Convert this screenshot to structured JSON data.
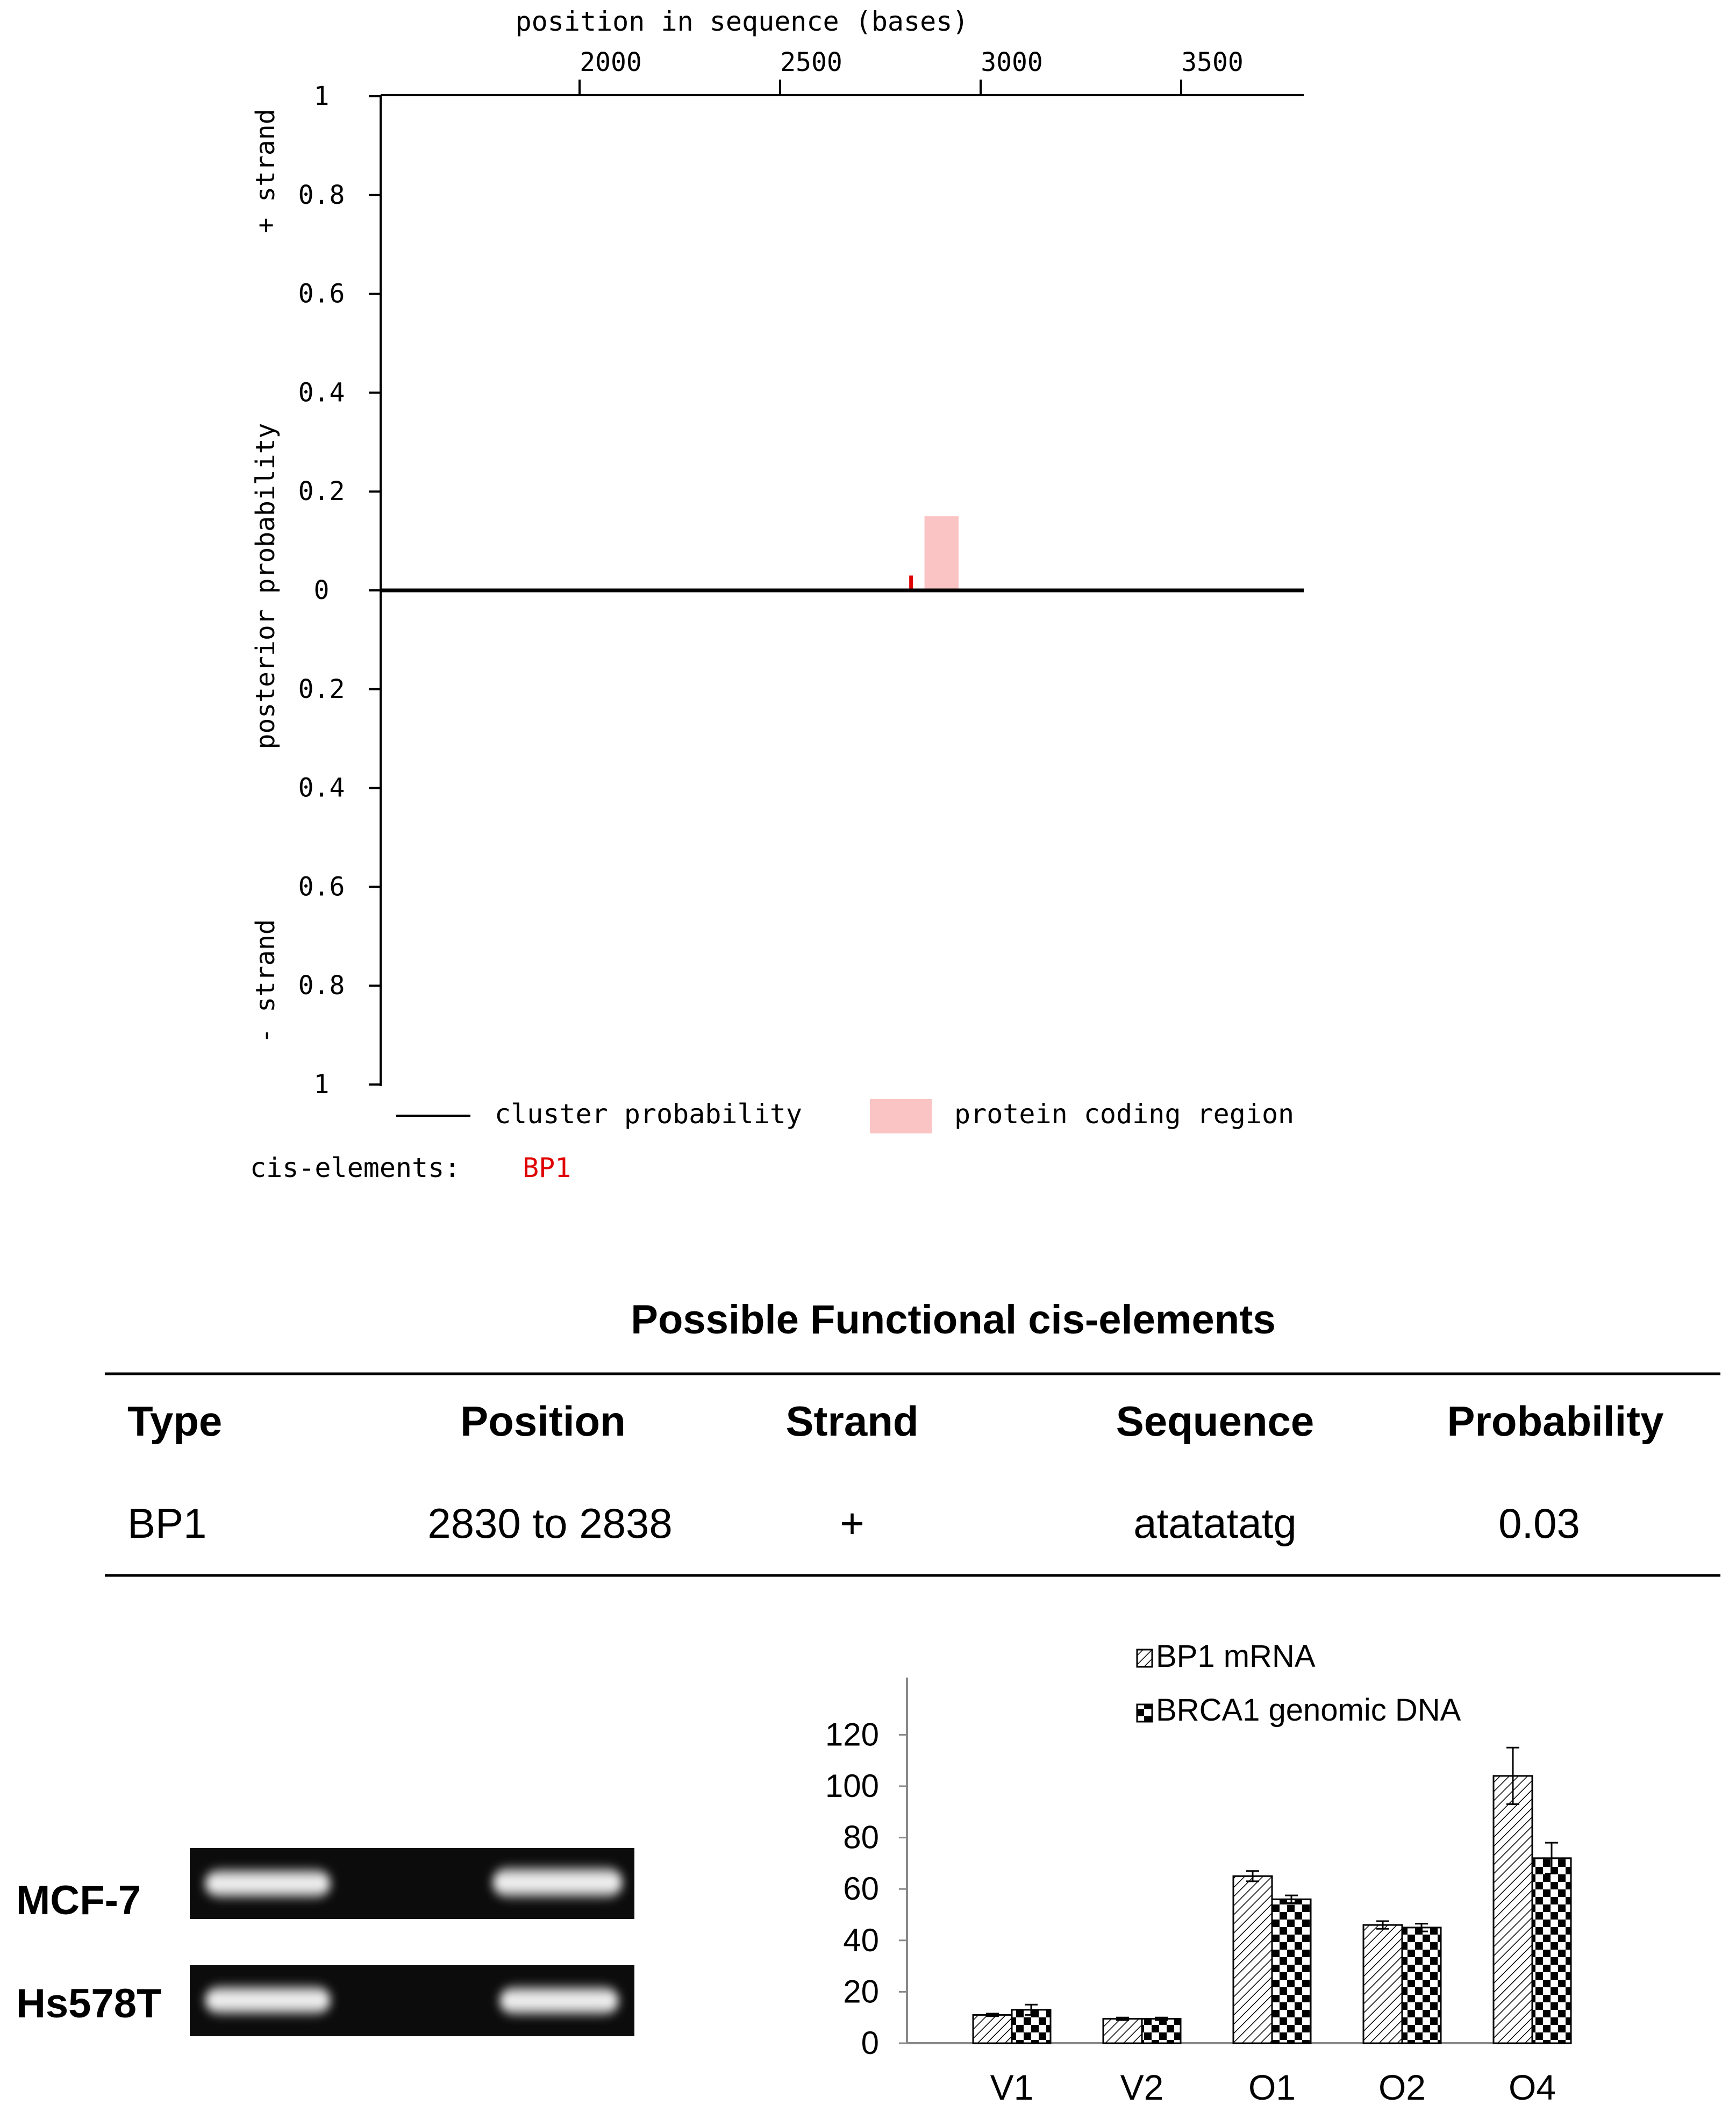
{
  "panel_a": {
    "x_title": "position in sequence (bases)",
    "y_title": "posterior probability",
    "plus_strand_label": "+ strand",
    "minus_strand_label": "- strand",
    "legend": {
      "cluster_probability": "cluster probability",
      "protein_coding_region": "protein coding region"
    },
    "cis_elements_label": "cis-elements:",
    "cis_elements_value": "BP1",
    "colors": {
      "coding_region": "#fbc4c4",
      "cis_element": "#e00000",
      "axis": "#000000"
    }
  },
  "table": {
    "title": "Possible Functional cis-elements",
    "headers": [
      "Type",
      "Position",
      "Strand",
      "Sequence",
      "Probability"
    ],
    "rows": [
      [
        "BP1",
        "2830 to 2838",
        "+",
        "atatatatg",
        "0.03"
      ]
    ]
  },
  "gel": {
    "rows": [
      {
        "label": "MCF-7"
      },
      {
        "label": "Hs578T"
      }
    ]
  },
  "chart_data": [
    {
      "type": "line",
      "xlabel": "position in sequence (bases)",
      "ylabel": "posterior probability",
      "x_ticks": [
        "2000",
        "2500",
        "3000",
        "3500"
      ],
      "y_ticks_upper": [
        "1",
        "0.8",
        "0.6",
        "0.4",
        "0.2",
        "0"
      ],
      "y_ticks_lower": [
        "0.2",
        "0.4",
        "0.6",
        "0.8",
        "1"
      ],
      "xlim": [
        1500,
        3800
      ],
      "ylim": [
        -1,
        1
      ],
      "axis_position": "top",
      "coding_region": {
        "start": 2860,
        "end": 2945,
        "height": 0.15
      },
      "cis_element_marks": [
        {
          "name": "BP1",
          "position": 2830,
          "strand": "+",
          "probability": 0.03
        }
      ],
      "legend_placement": "bottom"
    },
    {
      "type": "bar",
      "categories": [
        "V1",
        "V2",
        "O1",
        "O2",
        "O4"
      ],
      "series": [
        {
          "name": "BP1 mRNA",
          "values": [
            11,
            9.5,
            65,
            46,
            104
          ],
          "errors": [
            0.5,
            0.5,
            2,
            1.5,
            11
          ],
          "pattern": "diagonal-hatch"
        },
        {
          "name": "BRCA1 genomic DNA",
          "values": [
            13,
            9.5,
            56,
            45,
            72
          ],
          "errors": [
            2,
            0.5,
            1.5,
            1.5,
            6
          ],
          "pattern": "checker"
        }
      ],
      "y_ticks": [
        "0",
        "20",
        "40",
        "60",
        "80",
        "100",
        "120"
      ],
      "ylim": [
        0,
        140
      ],
      "legend_placement": "top-right",
      "grid": false
    }
  ]
}
